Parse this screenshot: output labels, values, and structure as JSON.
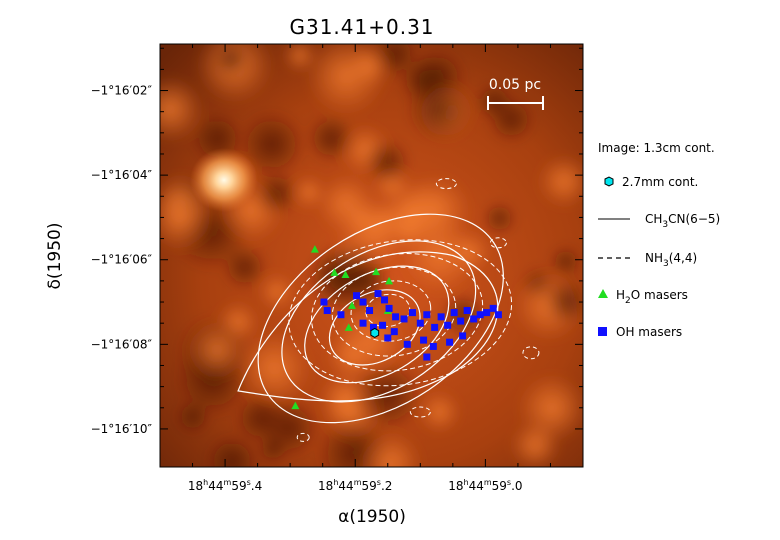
{
  "chart_data": {
    "type": "scatter",
    "title": "G31.41+0.31",
    "xlabel": "α(1950)",
    "ylabel": "δ(1950)",
    "x_unit": "seconds of right ascension (18h44m + s)",
    "y_unit": "arcseconds of declination (-1°16' - s)",
    "xlim": [
      59.5,
      58.85
    ],
    "ylim": [
      -10.9,
      -0.9
    ],
    "x_ticks": [
      {
        "value": 59.4,
        "label_h": "18",
        "label_m": "44",
        "label_s": "59",
        "label_frac": "4"
      },
      {
        "value": 59.2,
        "label_h": "18",
        "label_m": "44",
        "label_s": "59",
        "label_frac": "2"
      },
      {
        "value": 59.0,
        "label_h": "18",
        "label_m": "44",
        "label_s": "59",
        "label_frac": "0"
      }
    ],
    "y_ticks": [
      {
        "value": -2,
        "label": "−1°16′02″"
      },
      {
        "value": -4,
        "label": "−1°16′04″"
      },
      {
        "value": -6,
        "label": "−1°16′06″"
      },
      {
        "value": -8,
        "label": "−1°16′08″"
      },
      {
        "value": -10,
        "label": "−1°16′10″"
      }
    ],
    "background_image": "1.3cm continuum, orange colour scale",
    "scale_bar_label": "0.05 pc",
    "legend": {
      "placement": "right",
      "image_note": "Image: 1.3cm cont.",
      "items": [
        {
          "key": "cont27",
          "symbol": "hexagon",
          "color": "#00e5ee",
          "label": "2.7mm cont."
        },
        {
          "key": "ch3cn",
          "symbol": "solid-line",
          "label_main": "CH",
          "label_sub": "3",
          "label_tail": "CN(6−5)"
        },
        {
          "key": "nh3",
          "symbol": "dashed-line",
          "label_main": "NH",
          "label_sub": "3",
          "label_tail": "(4,4)"
        },
        {
          "key": "h2o",
          "symbol": "triangle",
          "color": "#22dd22",
          "label_main": "H",
          "label_sub": "2",
          "label_tail": "O masers"
        },
        {
          "key": "oh",
          "symbol": "square",
          "color": "#1010ff",
          "label": "OH masers"
        }
      ]
    },
    "cont_2_7mm": {
      "x": 59.17,
      "y": -7.73
    },
    "h2o_masers": [
      {
        "x": 59.262,
        "y": -5.75
      },
      {
        "x": 59.232,
        "y": -6.3
      },
      {
        "x": 59.215,
        "y": -6.35
      },
      {
        "x": 59.168,
        "y": -6.28
      },
      {
        "x": 59.148,
        "y": -6.5
      },
      {
        "x": 59.205,
        "y": -7.08
      },
      {
        "x": 59.15,
        "y": -7.2
      },
      {
        "x": 59.21,
        "y": -7.6
      },
      {
        "x": 59.292,
        "y": -9.45
      }
    ],
    "oh_masers": [
      {
        "x": 59.248,
        "y": -7.0
      },
      {
        "x": 59.243,
        "y": -7.2
      },
      {
        "x": 59.222,
        "y": -7.3
      },
      {
        "x": 59.198,
        "y": -6.85
      },
      {
        "x": 59.188,
        "y": -7.0
      },
      {
        "x": 59.178,
        "y": -7.2
      },
      {
        "x": 59.165,
        "y": -6.8
      },
      {
        "x": 59.155,
        "y": -6.95
      },
      {
        "x": 59.148,
        "y": -7.15
      },
      {
        "x": 59.138,
        "y": -7.35
      },
      {
        "x": 59.188,
        "y": -7.5
      },
      {
        "x": 59.172,
        "y": -7.6
      },
      {
        "x": 59.158,
        "y": -7.55
      },
      {
        "x": 59.14,
        "y": -7.7
      },
      {
        "x": 59.125,
        "y": -7.4
      },
      {
        "x": 59.112,
        "y": -7.25
      },
      {
        "x": 59.1,
        "y": -7.5
      },
      {
        "x": 59.09,
        "y": -7.3
      },
      {
        "x": 59.078,
        "y": -7.6
      },
      {
        "x": 59.068,
        "y": -7.35
      },
      {
        "x": 59.058,
        "y": -7.55
      },
      {
        "x": 59.048,
        "y": -7.25
      },
      {
        "x": 59.038,
        "y": -7.45
      },
      {
        "x": 59.028,
        "y": -7.2
      },
      {
        "x": 59.018,
        "y": -7.4
      },
      {
        "x": 59.008,
        "y": -7.3
      },
      {
        "x": 58.998,
        "y": -7.25
      },
      {
        "x": 58.988,
        "y": -7.15
      },
      {
        "x": 58.98,
        "y": -7.3
      },
      {
        "x": 59.095,
        "y": -7.9
      },
      {
        "x": 59.08,
        "y": -8.05
      },
      {
        "x": 59.12,
        "y": -8.0
      },
      {
        "x": 59.15,
        "y": -7.85
      },
      {
        "x": 59.035,
        "y": -7.8
      },
      {
        "x": 59.055,
        "y": -7.95
      },
      {
        "x": 59.09,
        "y": -8.3
      }
    ],
    "ch3cn_contours_note": "nested solid contours centred near (59.17, -7.6)",
    "nh3_contours_note": "dashed contours centred near (59.15, -7.2)"
  }
}
